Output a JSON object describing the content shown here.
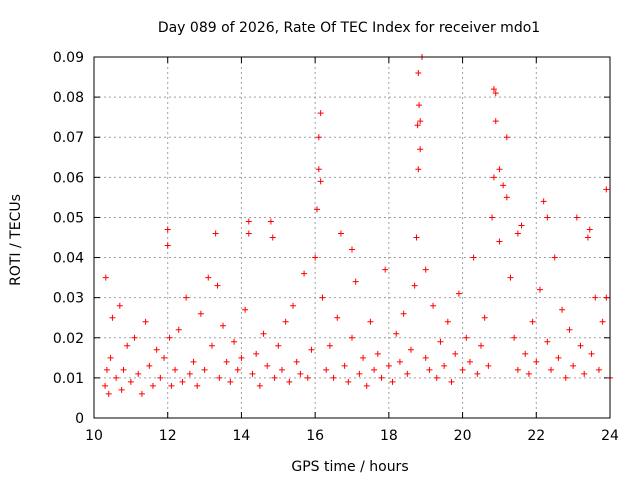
{
  "chart_data": {
    "type": "scatter",
    "title": "Day 089 of 2026, Rate Of TEC Index for receiver mdo1",
    "xlabel": "GPS time / hours",
    "ylabel": "ROTI / TECUs",
    "xlim": [
      10,
      24
    ],
    "ylim": [
      0,
      0.09
    ],
    "grid": true,
    "marker": "+",
    "color": "#ff0000",
    "xticks": [
      10,
      12,
      14,
      16,
      18,
      20,
      22,
      24
    ],
    "xtick_labels": [
      "10",
      "12",
      "14",
      "16",
      "18",
      "20",
      "22",
      "24"
    ],
    "yticks": [
      0,
      0.01,
      0.02,
      0.03,
      0.04,
      0.05,
      0.06,
      0.07,
      0.08,
      0.09
    ],
    "ytick_labels": [
      "0",
      "0.01",
      "0.02",
      "0.03",
      "0.04",
      "0.05",
      "0.06",
      "0.07",
      "0.08",
      "0.09"
    ],
    "series": [
      {
        "name": "ROTI",
        "x": [
          10.3,
          10.32,
          10.35,
          10.4,
          10.45,
          10.5,
          10.6,
          10.7,
          10.75,
          10.8,
          10.9,
          11.0,
          11.1,
          11.2,
          11.3,
          11.4,
          11.5,
          11.6,
          11.7,
          11.8,
          11.9,
          12.0,
          12.05,
          12.1,
          12.2,
          12.3,
          12.4,
          12.5,
          12.6,
          12.7,
          12.8,
          12.9,
          13.0,
          13.1,
          13.2,
          13.3,
          13.4,
          13.5,
          13.6,
          13.7,
          13.8,
          13.9,
          14.0,
          14.1,
          14.2,
          14.3,
          14.4,
          14.5,
          14.6,
          14.7,
          14.8,
          14.9,
          15.0,
          15.1,
          15.2,
          15.3,
          15.4,
          15.5,
          15.6,
          15.7,
          15.8,
          15.9,
          16.0,
          16.05,
          16.1,
          16.15,
          16.2,
          16.3,
          16.4,
          16.5,
          16.6,
          16.7,
          16.8,
          16.9,
          17.0,
          17.1,
          17.2,
          17.3,
          17.4,
          17.5,
          17.6,
          17.7,
          17.8,
          17.9,
          18.0,
          18.1,
          18.2,
          18.3,
          18.4,
          18.5,
          18.6,
          18.7,
          18.75,
          18.8,
          18.85,
          18.9,
          19.0,
          19.1,
          19.2,
          19.3,
          19.4,
          19.5,
          19.6,
          19.7,
          19.8,
          19.9,
          20.0,
          20.1,
          20.2,
          20.3,
          20.4,
          20.5,
          20.6,
          20.7,
          20.8,
          20.85,
          20.9,
          21.0,
          21.1,
          21.2,
          21.3,
          21.4,
          21.5,
          21.6,
          21.7,
          21.8,
          21.9,
          22.0,
          22.1,
          22.2,
          22.3,
          22.4,
          22.5,
          22.6,
          22.7,
          22.8,
          22.9,
          23.0,
          23.1,
          23.2,
          23.3,
          23.4,
          23.5,
          23.6,
          23.7,
          23.8,
          23.9,
          24.0,
          16.1,
          16.15,
          18.8,
          18.82,
          18.85,
          18.78,
          20.85,
          20.9,
          21.0,
          21.2,
          13.35,
          14.2,
          14.85,
          12.0,
          22.3,
          23.45,
          23.9,
          17.0,
          19.0,
          21.5
        ],
        "y": [
          0.008,
          0.035,
          0.012,
          0.006,
          0.015,
          0.025,
          0.01,
          0.028,
          0.007,
          0.012,
          0.018,
          0.009,
          0.02,
          0.011,
          0.006,
          0.024,
          0.013,
          0.008,
          0.017,
          0.01,
          0.015,
          0.047,
          0.02,
          0.008,
          0.012,
          0.022,
          0.009,
          0.03,
          0.011,
          0.014,
          0.008,
          0.026,
          0.012,
          0.035,
          0.018,
          0.046,
          0.01,
          0.023,
          0.014,
          0.009,
          0.019,
          0.012,
          0.015,
          0.027,
          0.049,
          0.011,
          0.016,
          0.008,
          0.021,
          0.013,
          0.049,
          0.01,
          0.018,
          0.012,
          0.024,
          0.009,
          0.028,
          0.014,
          0.011,
          0.036,
          0.01,
          0.017,
          0.04,
          0.052,
          0.062,
          0.076,
          0.03,
          0.012,
          0.018,
          0.01,
          0.025,
          0.046,
          0.013,
          0.009,
          0.02,
          0.034,
          0.011,
          0.015,
          0.008,
          0.024,
          0.012,
          0.016,
          0.01,
          0.037,
          0.013,
          0.009,
          0.021,
          0.014,
          0.026,
          0.011,
          0.017,
          0.033,
          0.045,
          0.062,
          0.074,
          0.09,
          0.015,
          0.012,
          0.028,
          0.01,
          0.019,
          0.013,
          0.024,
          0.009,
          0.016,
          0.031,
          0.012,
          0.02,
          0.014,
          0.04,
          0.011,
          0.018,
          0.025,
          0.013,
          0.05,
          0.06,
          0.081,
          0.044,
          0.058,
          0.07,
          0.035,
          0.02,
          0.012,
          0.048,
          0.016,
          0.011,
          0.024,
          0.014,
          0.032,
          0.054,
          0.019,
          0.012,
          0.04,
          0.015,
          0.027,
          0.01,
          0.022,
          0.013,
          0.05,
          0.018,
          0.011,
          0.045,
          0.016,
          0.03,
          0.012,
          0.024,
          0.057,
          0.01,
          0.07,
          0.059,
          0.086,
          0.078,
          0.067,
          0.073,
          0.082,
          0.074,
          0.062,
          0.055,
          0.033,
          0.046,
          0.045,
          0.043,
          0.05,
          0.047,
          0.03,
          0.042,
          0.037,
          0.046
        ]
      }
    ]
  }
}
